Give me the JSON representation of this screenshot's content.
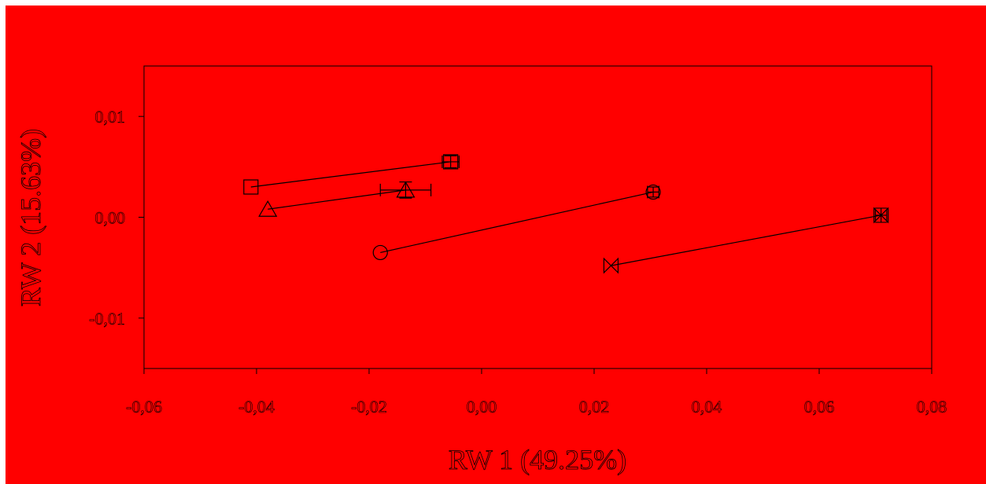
{
  "colors": {
    "background": "#ff0000",
    "ink": "#000000"
  },
  "chart_data": {
    "type": "scatter",
    "title": "",
    "xlabel": "RW 1 (49.25%)",
    "ylabel": "RW 2 (15.63%)",
    "xlim": [
      -0.06,
      0.08
    ],
    "ylim": [
      -0.015,
      0.015
    ],
    "xticks": [
      -0.06,
      -0.04,
      -0.02,
      0.0,
      0.02,
      0.04,
      0.06,
      0.08
    ],
    "yticks": [
      -0.01,
      0.0,
      0.01
    ],
    "xtick_labels": [
      "-0,06",
      "-0,04",
      "-0,02",
      "0,00",
      "0,02",
      "0,04",
      "0,06",
      "0,08"
    ],
    "ytick_labels": [
      "-0,01",
      "0,00",
      "0,01"
    ],
    "grid": false,
    "legend": false,
    "series": [
      {
        "marker": "square",
        "points": [
          {
            "x": -0.041,
            "y": 0.003
          },
          {
            "x": -0.0055,
            "y": 0.0055,
            "xerr": 0.0015,
            "yerr": 0.0006
          }
        ]
      },
      {
        "marker": "triangle",
        "points": [
          {
            "x": -0.038,
            "y": 0.0008
          },
          {
            "x": -0.0135,
            "y": 0.0027,
            "xerr": 0.0045,
            "yerr": 0.0008
          }
        ]
      },
      {
        "marker": "circle",
        "points": [
          {
            "x": -0.018,
            "y": -0.0035
          },
          {
            "x": 0.0305,
            "y": 0.0025,
            "xerr": 0.001,
            "yerr": 0.0005
          }
        ]
      },
      {
        "marker": "bowtie",
        "points": [
          {
            "x": 0.023,
            "y": -0.0048
          },
          {
            "x": 0.071,
            "y": 0.0002,
            "xerr": 0.001,
            "yerr": 0.0007
          }
        ]
      }
    ]
  }
}
